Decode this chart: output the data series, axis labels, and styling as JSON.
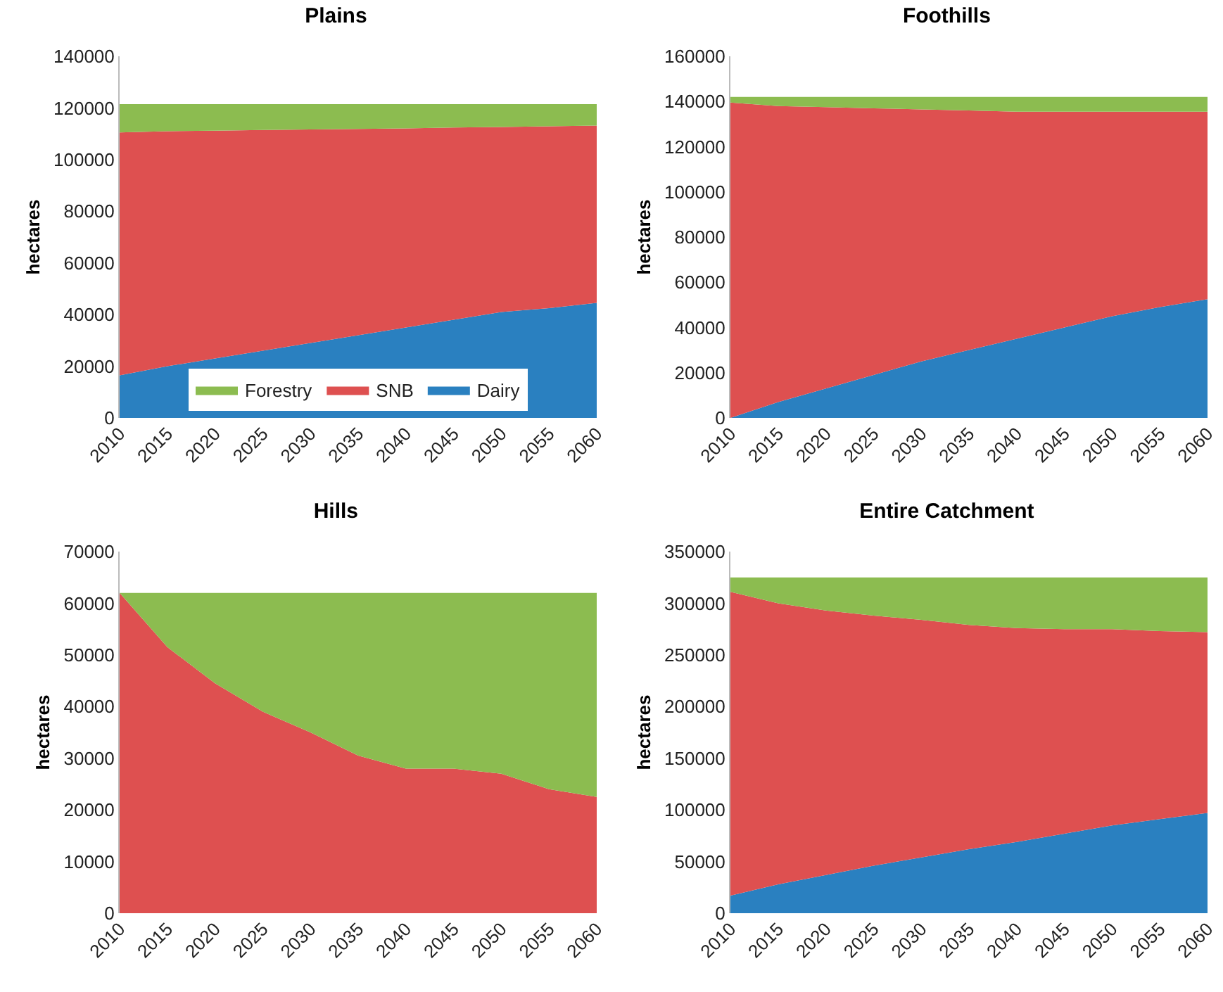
{
  "chart_data": [
    {
      "type": "area",
      "title": "Plains",
      "ylabel": "hectares",
      "categories": [
        "2010",
        "2015",
        "2020",
        "2025",
        "2030",
        "2035",
        "2040",
        "2045",
        "2050",
        "2055",
        "2060"
      ],
      "stacked": true,
      "legend": "bottom",
      "grid": false,
      "ylim": [
        0,
        140000
      ],
      "yticks": [
        0,
        20000,
        40000,
        60000,
        80000,
        100000,
        120000,
        140000
      ],
      "series": [
        {
          "name": "Dairy",
          "color": "#2a80c0",
          "values": [
            16500,
            20000,
            23000,
            26000,
            29000,
            32000,
            35000,
            38000,
            41000,
            42500,
            44500
          ]
        },
        {
          "name": "SNB",
          "color": "#de5050",
          "values": [
            94000,
            91000,
            88200,
            85500,
            82700,
            79900,
            77100,
            74400,
            71600,
            70400,
            68700
          ]
        },
        {
          "name": "Forestry",
          "color": "#8cbc50",
          "values": [
            11000,
            10500,
            10300,
            10000,
            9800,
            9600,
            9400,
            9100,
            8900,
            8600,
            8300
          ]
        }
      ]
    },
    {
      "type": "area",
      "title": "Foothills",
      "ylabel": "hectares",
      "categories": [
        "2010",
        "2015",
        "2020",
        "2025",
        "2030",
        "2035",
        "2040",
        "2045",
        "2050",
        "2055",
        "2060"
      ],
      "stacked": true,
      "grid": false,
      "ylim": [
        0,
        160000
      ],
      "yticks": [
        0,
        20000,
        40000,
        60000,
        80000,
        100000,
        120000,
        140000,
        160000
      ],
      "series": [
        {
          "color": "#2a80c0",
          "values": [
            0,
            7000,
            13000,
            19000,
            25000,
            30000,
            35000,
            40000,
            45000,
            49000,
            52500
          ]
        },
        {
          "color": "#de5050",
          "values": [
            139500,
            131000,
            124500,
            118000,
            111500,
            106000,
            100500,
            95500,
            90500,
            86500,
            83000
          ]
        },
        {
          "color": "#8cbc50",
          "values": [
            2500,
            4000,
            4500,
            5000,
            5500,
            6000,
            6500,
            6500,
            6500,
            6500,
            6500
          ]
        }
      ]
    },
    {
      "type": "area",
      "title": "Hills",
      "ylabel": "hectares",
      "categories": [
        "2010",
        "2015",
        "2020",
        "2025",
        "2030",
        "2035",
        "2040",
        "2045",
        "2050",
        "2055",
        "2060"
      ],
      "stacked": true,
      "grid": false,
      "ylim": [
        0,
        70000
      ],
      "yticks": [
        0,
        10000,
        20000,
        30000,
        40000,
        50000,
        60000,
        70000
      ],
      "series": [
        {
          "color": "#de5050",
          "values": [
            62000,
            51500,
            44500,
            39000,
            35000,
            30500,
            28000,
            28000,
            27000,
            24000,
            22500
          ]
        },
        {
          "color": "#8cbc50",
          "values": [
            0,
            10500,
            17500,
            23000,
            27000,
            31500,
            34000,
            34000,
            35000,
            38000,
            39500
          ]
        }
      ]
    },
    {
      "type": "area",
      "title": "Entire Catchment",
      "ylabel": "hectares",
      "categories": [
        "2010",
        "2015",
        "2020",
        "2025",
        "2030",
        "2035",
        "2040",
        "2045",
        "2050",
        "2055",
        "2060"
      ],
      "stacked": true,
      "grid": false,
      "ylim": [
        0,
        350000
      ],
      "yticks": [
        0,
        50000,
        100000,
        150000,
        200000,
        250000,
        300000,
        350000
      ],
      "series": [
        {
          "color": "#2a80c0",
          "values": [
            17000,
            28000,
            37000,
            46000,
            54000,
            62000,
            69000,
            77000,
            85000,
            91000,
            97000
          ]
        },
        {
          "color": "#de5050",
          "values": [
            294000,
            272000,
            256000,
            242000,
            230000,
            217000,
            207000,
            198000,
            190000,
            182000,
            175000
          ]
        },
        {
          "color": "#8cbc50",
          "values": [
            14000,
            25000,
            32000,
            37000,
            41000,
            46000,
            49000,
            50000,
            50000,
            52000,
            53000
          ]
        }
      ]
    }
  ]
}
